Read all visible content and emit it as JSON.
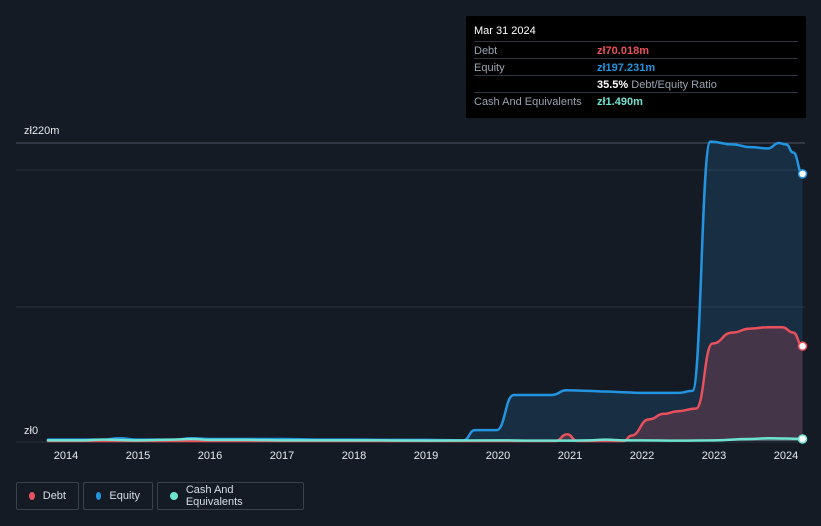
{
  "tooltip": {
    "date": "Mar 31 2024",
    "rows": [
      {
        "label": "Debt",
        "value": "zł70.018m",
        "color": "#e8505b"
      },
      {
        "label": "Equity",
        "value": "zł197.231m",
        "color": "#2394df"
      },
      {
        "label": "",
        "value": "35.5%",
        "suffix": "Debt/Equity Ratio"
      },
      {
        "label": "Cash And Equivalents",
        "value": "zł1.490m",
        "color": "#6ee3cf"
      }
    ]
  },
  "legend": [
    {
      "label": "Debt",
      "color": "#e8505b"
    },
    {
      "label": "Equity",
      "color": "#2394df"
    },
    {
      "label": "Cash And Equivalents",
      "color": "#6ee3cf"
    }
  ],
  "chart_data": {
    "type": "area",
    "title": "",
    "ylim": [
      0,
      220
    ],
    "yunit": "zł m",
    "ytick_labels": [
      "zł220m",
      "zł0"
    ],
    "xtick_labels": [
      "2014",
      "2015",
      "2016",
      "2017",
      "2018",
      "2019",
      "2020",
      "2021",
      "2022",
      "2023",
      "2024"
    ],
    "xlim": [
      2013.75,
      2024.25
    ],
    "series": [
      {
        "name": "Equity",
        "color": "#2394df",
        "points": [
          [
            2013.75,
            1
          ],
          [
            2014.5,
            1
          ],
          [
            2014.75,
            2
          ],
          [
            2015.0,
            1
          ],
          [
            2015.5,
            1
          ],
          [
            2015.75,
            2
          ],
          [
            2016.0,
            1.5
          ],
          [
            2016.5,
            1.5
          ],
          [
            2017.0,
            1.5
          ],
          [
            2017.5,
            1
          ],
          [
            2018.0,
            1
          ],
          [
            2018.5,
            0.8
          ],
          [
            2019.0,
            0.8
          ],
          [
            2019.5,
            0.5
          ],
          [
            2019.52,
            0.5
          ],
          [
            2019.68,
            8
          ],
          [
            2019.8,
            8
          ],
          [
            2019.98,
            8
          ],
          [
            2020.22,
            34
          ],
          [
            2020.5,
            34
          ],
          [
            2020.75,
            34
          ],
          [
            2020.95,
            37.5
          ],
          [
            2021.25,
            37
          ],
          [
            2021.5,
            36.5
          ],
          [
            2021.75,
            36
          ],
          [
            2022.0,
            35.5
          ],
          [
            2022.3,
            35.5
          ],
          [
            2022.5,
            35.5
          ],
          [
            2022.7,
            37
          ],
          [
            2022.95,
            221
          ],
          [
            2023.25,
            219
          ],
          [
            2023.5,
            217
          ],
          [
            2023.75,
            216
          ],
          [
            2023.9,
            220
          ],
          [
            2024.0,
            219
          ],
          [
            2024.1,
            213
          ],
          [
            2024.23,
            197.231
          ]
        ]
      },
      {
        "name": "Debt",
        "color": "#e8505b",
        "points": [
          [
            2013.75,
            0
          ],
          [
            2020.5,
            0
          ],
          [
            2020.8,
            0
          ],
          [
            2020.96,
            5
          ],
          [
            2021.1,
            0
          ],
          [
            2021.75,
            0
          ],
          [
            2021.85,
            4
          ],
          [
            2022.1,
            16
          ],
          [
            2022.3,
            20
          ],
          [
            2022.5,
            22
          ],
          [
            2022.75,
            24
          ],
          [
            2022.98,
            72
          ],
          [
            2023.25,
            80
          ],
          [
            2023.5,
            83
          ],
          [
            2023.75,
            84
          ],
          [
            2023.95,
            84
          ],
          [
            2024.1,
            80
          ],
          [
            2024.23,
            70.018
          ]
        ]
      },
      {
        "name": "Cash And Equivalents",
        "color": "#6ee3cf",
        "points": [
          [
            2013.75,
            0.5
          ],
          [
            2014.25,
            0.5
          ],
          [
            2014.5,
            1
          ],
          [
            2015.0,
            0.5
          ],
          [
            2015.5,
            1
          ],
          [
            2015.75,
            1.5
          ],
          [
            2016.0,
            0.8
          ],
          [
            2016.5,
            0.8
          ],
          [
            2017.0,
            0.5
          ],
          [
            2018.0,
            0.5
          ],
          [
            2019.0,
            0.3
          ],
          [
            2020.0,
            0.5
          ],
          [
            2020.5,
            0.3
          ],
          [
            2021.0,
            0.3
          ],
          [
            2021.25,
            0.5
          ],
          [
            2021.5,
            1
          ],
          [
            2021.75,
            0.5
          ],
          [
            2022.0,
            0.5
          ],
          [
            2022.5,
            0.3
          ],
          [
            2023.0,
            0.5
          ],
          [
            2023.5,
            1.5
          ],
          [
            2023.75,
            2
          ],
          [
            2024.0,
            1.8
          ],
          [
            2024.23,
            1.49
          ]
        ]
      }
    ]
  }
}
